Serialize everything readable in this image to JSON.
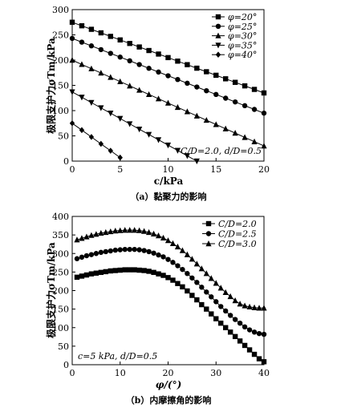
{
  "chart_data": [
    {
      "type": "line",
      "caption": "（a）黏聚力的影响",
      "xlabel": "c/kPa",
      "ylabel": "极限支护力σTm/kPa",
      "annotation": "C/D=2.0, d/D=0.5",
      "xlim": [
        0,
        20
      ],
      "ylim": [
        0,
        300
      ],
      "xticks": [
        0,
        5,
        10,
        15,
        20
      ],
      "yticks": [
        0,
        50,
        100,
        150,
        200,
        250,
        300
      ],
      "legend_position": "top-right",
      "series": [
        {
          "name": "φ=20°",
          "marker": "square",
          "x": [
            0,
            20
          ],
          "y": [
            275,
            135
          ],
          "step": 1
        },
        {
          "name": "φ=25°",
          "marker": "circle",
          "x": [
            0,
            20
          ],
          "y": [
            243,
            95
          ],
          "step": 1
        },
        {
          "name": "φ=30°",
          "marker": "triangle-up",
          "x": [
            0,
            20
          ],
          "y": [
            200,
            30
          ],
          "step": 1
        },
        {
          "name": "φ=35°",
          "marker": "triangle-down",
          "x": [
            0,
            13
          ],
          "y": [
            137,
            0
          ],
          "step": 1
        },
        {
          "name": "φ=40°",
          "marker": "diamond",
          "x": [
            0,
            5
          ],
          "y": [
            75,
            7
          ],
          "step": 1
        }
      ]
    },
    {
      "type": "line",
      "caption": "（b）内摩擦角的影响",
      "xlabel": "φ/(°)",
      "ylabel": "极限支护力σTm/kPa",
      "annotation": "c=5 kPa, d/D=0.5",
      "xlim": [
        0,
        40
      ],
      "ylim": [
        0,
        400
      ],
      "xticks": [
        0,
        10,
        20,
        30,
        40
      ],
      "yticks": [
        0,
        50,
        100,
        150,
        200,
        250,
        300,
        350,
        400
      ],
      "legend_position": "top-right",
      "series": [
        {
          "name": "C/D=2.0",
          "marker": "square",
          "x": [
            1,
            2,
            3,
            4,
            5,
            6,
            7,
            8,
            9,
            10,
            11,
            12,
            13,
            14,
            15,
            16,
            17,
            18,
            19,
            20,
            21,
            22,
            23,
            24,
            25,
            26,
            27,
            28,
            29,
            30,
            31,
            32,
            33,
            34,
            35,
            36,
            37,
            38,
            39,
            40
          ],
          "y": [
            236,
            239,
            242,
            245,
            247,
            249,
            251,
            253,
            254,
            255,
            256,
            256,
            256,
            255,
            254,
            252,
            249,
            245,
            241,
            235,
            228,
            219,
            210,
            199,
            187,
            175,
            162,
            150,
            137,
            124,
            112,
            100,
            88,
            76,
            64,
            52,
            40,
            28,
            16,
            8
          ]
        },
        {
          "name": "C/D=2.5",
          "marker": "circle",
          "x": [
            1,
            2,
            3,
            4,
            5,
            6,
            7,
            8,
            9,
            10,
            11,
            12,
            13,
            14,
            15,
            16,
            17,
            18,
            19,
            20,
            21,
            22,
            23,
            24,
            25,
            26,
            27,
            28,
            29,
            30,
            31,
            32,
            33,
            34,
            35,
            36,
            37,
            38,
            39,
            40
          ],
          "y": [
            286,
            290,
            294,
            297,
            300,
            303,
            305,
            307,
            309,
            310,
            311,
            311,
            311,
            310,
            308,
            305,
            301,
            296,
            291,
            284,
            276,
            267,
            257,
            246,
            234,
            222,
            209,
            196,
            183,
            170,
            157,
            145,
            133,
            122,
            112,
            102,
            94,
            88,
            84,
            82
          ]
        },
        {
          "name": "C/D=3.0",
          "marker": "triangle-up",
          "x": [
            1,
            2,
            3,
            4,
            5,
            6,
            7,
            8,
            9,
            10,
            11,
            12,
            13,
            14,
            15,
            16,
            17,
            18,
            19,
            20,
            21,
            22,
            23,
            24,
            25,
            26,
            27,
            28,
            29,
            30,
            31,
            32,
            33,
            34,
            35,
            36,
            37,
            38,
            39,
            40
          ],
          "y": [
            337,
            341,
            345,
            349,
            352,
            355,
            357,
            359,
            361,
            362,
            363,
            363,
            363,
            362,
            360,
            357,
            353,
            348,
            342,
            335,
            327,
            318,
            308,
            297,
            285,
            272,
            259,
            246,
            233,
            220,
            207,
            195,
            184,
            173,
            164,
            159,
            156,
            154,
            153,
            153
          ]
        }
      ]
    }
  ]
}
